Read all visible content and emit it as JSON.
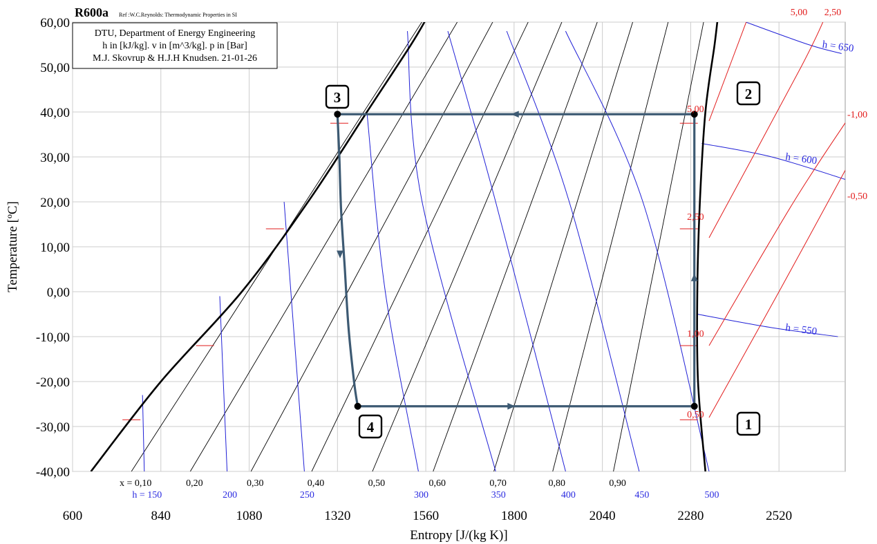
{
  "chart_data": {
    "type": "line",
    "title": "R600a",
    "reference": "Ref :W.C.Reynolds: Thermodynamic Properties in SI",
    "info_box": [
      "DTU, Department of Energy Engineering",
      "h in [kJ/kg]. v in [m^3/kg]. p in [Bar]",
      "M.J. Skovrup & H.J.H Knudsen. 21-01-26"
    ],
    "xlabel": "Entropy [J/(kg K)]",
    "ylabel": "Temperature [ºC]",
    "xlim": [
      600,
      2700
    ],
    "ylim": [
      -40,
      60
    ],
    "grid": true,
    "x_ticks": [
      600,
      840,
      1080,
      1320,
      1560,
      1800,
      2040,
      2280,
      2520
    ],
    "y_ticks": [
      {
        "value": 60,
        "label": "60,00"
      },
      {
        "value": 50,
        "label": "50,00"
      },
      {
        "value": 40,
        "label": "40,00"
      },
      {
        "value": 30,
        "label": "30,00"
      },
      {
        "value": 20,
        "label": "20,00"
      },
      {
        "value": 10,
        "label": "10,00"
      },
      {
        "value": 0,
        "label": "0,00"
      },
      {
        "value": -10,
        "label": "-10,00"
      },
      {
        "value": -20,
        "label": "-20,00"
      },
      {
        "value": -30,
        "label": "-30,00"
      },
      {
        "value": -40,
        "label": "-40,00"
      }
    ],
    "saturation_liquid": [
      [
        650,
        -40
      ],
      [
        840,
        -20
      ],
      [
        1060,
        0
      ],
      [
        1240,
        20
      ],
      [
        1400,
        40
      ],
      [
        1520,
        55
      ],
      [
        1570,
        62
      ]
    ],
    "saturation_vapor": [
      [
        2320,
        -40
      ],
      [
        2300,
        -20
      ],
      [
        2298,
        0
      ],
      [
        2305,
        20
      ],
      [
        2320,
        40
      ],
      [
        2345,
        55
      ],
      [
        2355,
        62
      ]
    ],
    "quality_lines": [
      {
        "label": "x = 0,10",
        "x_bottom": 760,
        "x_top": 1565
      },
      {
        "label": "0,20",
        "x_bottom": 920,
        "x_top": 1660
      },
      {
        "label": "0,30",
        "x_bottom": 1085,
        "x_top": 1755
      },
      {
        "label": "0,40",
        "x_bottom": 1250,
        "x_top": 1850
      },
      {
        "label": "0,50",
        "x_bottom": 1415,
        "x_top": 1940
      },
      {
        "label": "0,60",
        "x_bottom": 1580,
        "x_top": 2035
      },
      {
        "label": "0,70",
        "x_bottom": 1745,
        "x_top": 2130
      },
      {
        "label": "0,80",
        "x_bottom": 1905,
        "x_top": 2225
      },
      {
        "label": "0,90",
        "x_bottom": 2070,
        "x_top": 2320
      }
    ],
    "enthalpy_lines_two_phase": [
      {
        "label": "h = 150",
        "h": 150,
        "pts": [
          [
            790,
            -23
          ],
          [
            795,
            -40
          ]
        ]
      },
      {
        "label": "200",
        "h": 200,
        "pts": [
          [
            1000,
            -1
          ],
          [
            1020,
            -40
          ]
        ]
      },
      {
        "label": "250",
        "h": 250,
        "pts": [
          [
            1175,
            20
          ],
          [
            1230,
            -40
          ]
        ]
      },
      {
        "label": "300",
        "h": 300,
        "pts": [
          [
            1400,
            40
          ],
          [
            1450,
            0
          ],
          [
            1540,
            -40
          ]
        ]
      },
      {
        "label": "350",
        "h": 350,
        "pts": [
          [
            1510,
            58
          ],
          [
            1550,
            20
          ],
          [
            1750,
            -40
          ]
        ]
      },
      {
        "label": "400",
        "h": 400,
        "pts": [
          [
            1620,
            58
          ],
          [
            1750,
            20
          ],
          [
            1940,
            -40
          ]
        ]
      },
      {
        "label": "450",
        "h": 450,
        "pts": [
          [
            1780,
            58
          ],
          [
            1950,
            20
          ],
          [
            2140,
            -40
          ]
        ]
      },
      {
        "label": "500",
        "h": 500,
        "pts": [
          [
            1940,
            58
          ],
          [
            2150,
            20
          ],
          [
            2330,
            -40
          ]
        ]
      }
    ],
    "enthalpy_lines_vapor": [
      {
        "label": "h = 550",
        "h": 550,
        "pts": [
          [
            2298,
            -5
          ],
          [
            2500,
            -8
          ],
          [
            2680,
            -10
          ]
        ]
      },
      {
        "label": "h = 600",
        "h": 600,
        "pts": [
          [
            2310,
            33
          ],
          [
            2500,
            30
          ],
          [
            2700,
            25
          ]
        ]
      },
      {
        "label": "h = 650",
        "h": 650,
        "pts": [
          [
            2430,
            60
          ],
          [
            2600,
            55
          ],
          [
            2690,
            53
          ]
        ]
      }
    ],
    "specific_volume_lines": [
      {
        "label": "0,50",
        "pts": [
          [
            2330,
            -28
          ],
          [
            2520,
            0
          ],
          [
            2720,
            30
          ]
        ]
      },
      {
        "label": "1,00",
        "pts": [
          [
            2330,
            -12
          ],
          [
            2560,
            20
          ],
          [
            2720,
            40
          ]
        ]
      },
      {
        "label": "2,50",
        "pts": [
          [
            2330,
            12
          ],
          [
            2580,
            50
          ],
          [
            2650,
            62
          ]
        ]
      },
      {
        "label": "5,00",
        "pts": [
          [
            2330,
            38
          ],
          [
            2440,
            62
          ]
        ]
      }
    ],
    "pressure_labels": [
      {
        "label": "0,50",
        "x": 2270,
        "y": -28
      },
      {
        "label": "1,00",
        "x": 2270,
        "y": -10
      },
      {
        "label": "2,50",
        "x": 2270,
        "y": 16
      },
      {
        "label": "5,00",
        "x": 2270,
        "y": 40
      }
    ],
    "isobar_marks": [
      {
        "x": 760,
        "y": -28.5
      },
      {
        "x": 960,
        "y": -12
      },
      {
        "x": 1150,
        "y": 14
      },
      {
        "x": 1325,
        "y": 37.5
      },
      {
        "x": 2275,
        "y": -28.5
      },
      {
        "x": 2275,
        "y": -12
      },
      {
        "x": 2275,
        "y": 14
      },
      {
        "x": 2275,
        "y": 37.5
      }
    ],
    "right_scale_labels": [
      "5,00",
      "2,50",
      "-1,00",
      "-0,50"
    ],
    "cycle": {
      "points": [
        {
          "id": "1",
          "s": 2290,
          "t": -25.5
        },
        {
          "id": "2",
          "s": 2290,
          "t": 39.5
        },
        {
          "id": "3",
          "s": 1320,
          "t": 39.5
        },
        {
          "id": "4",
          "s": 1375,
          "t": -25.5
        }
      ],
      "path_3_to_4": [
        [
          1320,
          39.5
        ],
        [
          1325,
          30
        ],
        [
          1330,
          18
        ],
        [
          1340,
          5
        ],
        [
          1350,
          -8
        ],
        [
          1365,
          -20
        ],
        [
          1375,
          -25.5
        ]
      ]
    }
  }
}
